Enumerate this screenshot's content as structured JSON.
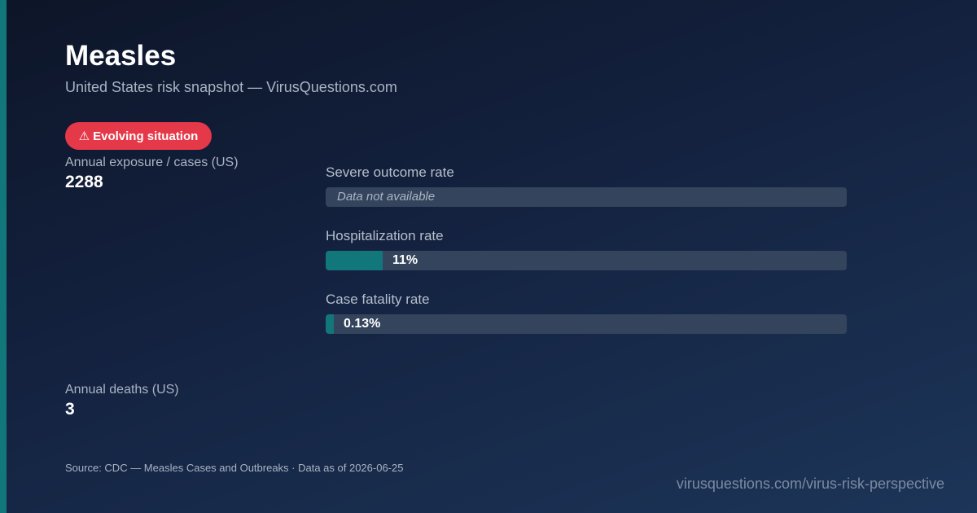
{
  "title": "Measles",
  "subtitle": "United States risk snapshot — VirusQuestions.com",
  "badge": {
    "icon": "⚠",
    "label": "Evolving situation",
    "color": "#e53848"
  },
  "stats": {
    "annual_cases": {
      "label": "Annual exposure / cases (US)",
      "value": "2288"
    },
    "annual_deaths": {
      "label": "Annual deaths (US)",
      "value": "3"
    }
  },
  "metrics": {
    "severe": {
      "label": "Severe outcome rate",
      "value_text": "Data not available",
      "available": false
    },
    "hospitalization": {
      "label": "Hospitalization rate",
      "value_text": "11%",
      "fill_percent": 11
    },
    "fatality": {
      "label": "Case fatality rate",
      "value_text": "0.13%",
      "fill_percent": 0.13
    }
  },
  "colors": {
    "accent": "#12777a",
    "track": "#34445c"
  },
  "footer": {
    "source": "Source: CDC — Measles Cases and Outbreaks · Data as of 2026-06-25",
    "url": "virusquestions.com/virus-risk-perspective"
  }
}
